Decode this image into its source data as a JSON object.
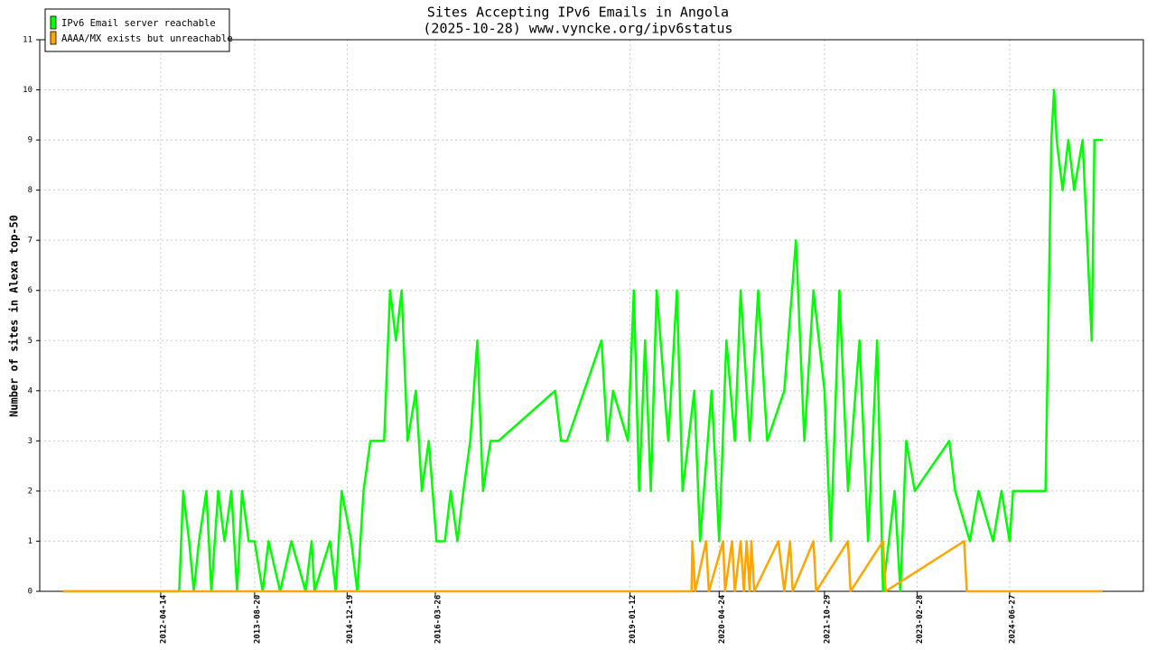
{
  "chart_data": {
    "type": "line",
    "title": "Sites Accepting IPv6 Emails in Angola",
    "subtitle": "(2025-10-28) www.vyncke.org/ipv6status",
    "y_label": "Number of sites in Alexa top-50",
    "legend": "top-left",
    "grid": true,
    "xlim": [
      "2010-07-19",
      "2026-05-30"
    ],
    "xticks": [
      "2012-04-14",
      "2013-08-20",
      "2014-12-19",
      "2016-03-26",
      "2019-01-12",
      "2020-04-24",
      "2021-10-29",
      "2023-02-28",
      "2024-06-27"
    ],
    "ylim": [
      0,
      11
    ],
    "yticks": [
      0,
      1,
      2,
      3,
      4,
      5,
      6,
      7,
      8,
      9,
      10,
      11
    ],
    "series": [
      {
        "name": "IPv6 Email server reachable",
        "color": "#00ff00",
        "x": [
          "2010-11-19",
          "2012-07-20",
          "2012-08-10",
          "2012-09-10",
          "2012-10-05",
          "2012-11-01",
          "2012-12-10",
          "2013-01-05",
          "2013-02-10",
          "2013-03-15",
          "2013-04-20",
          "2013-05-20",
          "2013-06-15",
          "2013-07-20",
          "2013-08-20",
          "2013-10-01",
          "2013-11-01",
          "2014-01-01",
          "2014-03-01",
          "2014-05-15",
          "2014-06-15",
          "2014-07-01",
          "2014-09-20",
          "2014-10-20",
          "2014-11-20",
          "2015-01-10",
          "2015-02-10",
          "2015-03-15",
          "2015-04-20",
          "2015-07-01",
          "2015-08-01",
          "2015-09-01",
          "2015-10-01",
          "2015-11-01",
          "2015-12-15",
          "2016-01-15",
          "2016-02-20",
          "2016-04-01",
          "2016-05-15",
          "2016-06-15",
          "2016-07-20",
          "2016-08-20",
          "2016-09-25",
          "2016-11-01",
          "2016-12-01",
          "2017-01-10",
          "2017-02-20",
          "2017-12-15",
          "2018-01-15",
          "2018-02-15",
          "2018-08-15",
          "2018-09-15",
          "2018-10-15",
          "2019-01-01",
          "2019-02-01",
          "2019-03-01",
          "2019-04-01",
          "2019-05-01",
          "2019-06-01",
          "2019-08-01",
          "2019-09-15",
          "2019-10-15",
          "2019-12-15",
          "2020-01-15",
          "2020-03-15",
          "2020-04-24",
          "2020-06-01",
          "2020-07-15",
          "2020-08-15",
          "2020-10-01",
          "2020-11-15",
          "2021-01-01",
          "2021-04-01",
          "2021-06-01",
          "2021-07-15",
          "2021-09-01",
          "2021-10-29",
          "2021-12-01",
          "2022-01-15",
          "2022-03-01",
          "2022-05-01",
          "2022-06-15",
          "2022-08-01",
          "2022-09-01",
          "2022-11-01",
          "2022-12-01",
          "2023-01-01",
          "2023-02-15",
          "2023-08-15",
          "2023-09-15",
          "2023-12-01",
          "2024-01-15",
          "2024-04-01",
          "2024-05-15",
          "2024-06-27",
          "2024-07-15",
          "2025-01-01",
          "2025-01-15",
          "2025-02-01",
          "2025-02-15",
          "2025-03-01",
          "2025-04-01",
          "2025-05-01",
          "2025-06-01",
          "2025-07-15",
          "2025-09-01",
          "2025-09-15",
          "2025-10-28"
        ],
        "values": [
          0,
          0,
          2,
          1,
          0,
          1,
          2,
          0,
          2,
          1,
          2,
          0,
          2,
          1,
          1,
          0,
          1,
          0,
          1,
          0,
          1,
          0,
          1,
          0,
          2,
          1,
          0,
          2,
          3,
          3,
          6,
          5,
          6,
          3,
          4,
          2,
          3,
          1,
          1,
          2,
          1,
          2,
          3,
          5,
          2,
          3,
          3,
          4,
          3,
          3,
          5,
          3,
          4,
          3,
          6,
          2,
          5,
          2,
          6,
          3,
          6,
          2,
          4,
          1,
          4,
          1,
          5,
          3,
          6,
          3,
          6,
          3,
          4,
          7,
          3,
          6,
          4,
          1,
          6,
          2,
          5,
          1,
          5,
          0,
          2,
          0,
          3,
          2,
          3,
          2,
          1,
          2,
          1,
          2,
          1,
          2,
          2,
          5,
          9,
          10,
          9,
          8,
          9,
          8,
          9,
          5,
          9,
          9
        ]
      },
      {
        "name": "AAAA/MX exists but unreachable",
        "color": "#ffa500",
        "x": [
          "2010-11-19",
          "2019-12-01",
          "2019-12-05",
          "2019-12-20",
          "2020-02-15",
          "2020-03-01",
          "2020-05-15",
          "2020-05-25",
          "2020-07-01",
          "2020-07-15",
          "2020-08-15",
          "2020-09-01",
          "2020-09-15",
          "2020-10-01",
          "2020-10-10",
          "2020-10-25",
          "2021-03-01",
          "2021-04-01",
          "2021-05-01",
          "2021-05-15",
          "2021-09-01",
          "2021-09-15",
          "2022-03-01",
          "2022-03-15",
          "2022-09-01",
          "2022-09-15",
          "2023-11-01",
          "2023-11-15",
          "2025-10-28"
        ],
        "values": [
          0,
          0,
          1,
          0,
          1,
          0,
          1,
          0,
          1,
          0,
          1,
          0,
          1,
          0,
          1,
          0,
          1,
          0,
          1,
          0,
          1,
          0,
          1,
          0,
          1,
          0,
          1,
          0,
          0
        ]
      }
    ]
  }
}
